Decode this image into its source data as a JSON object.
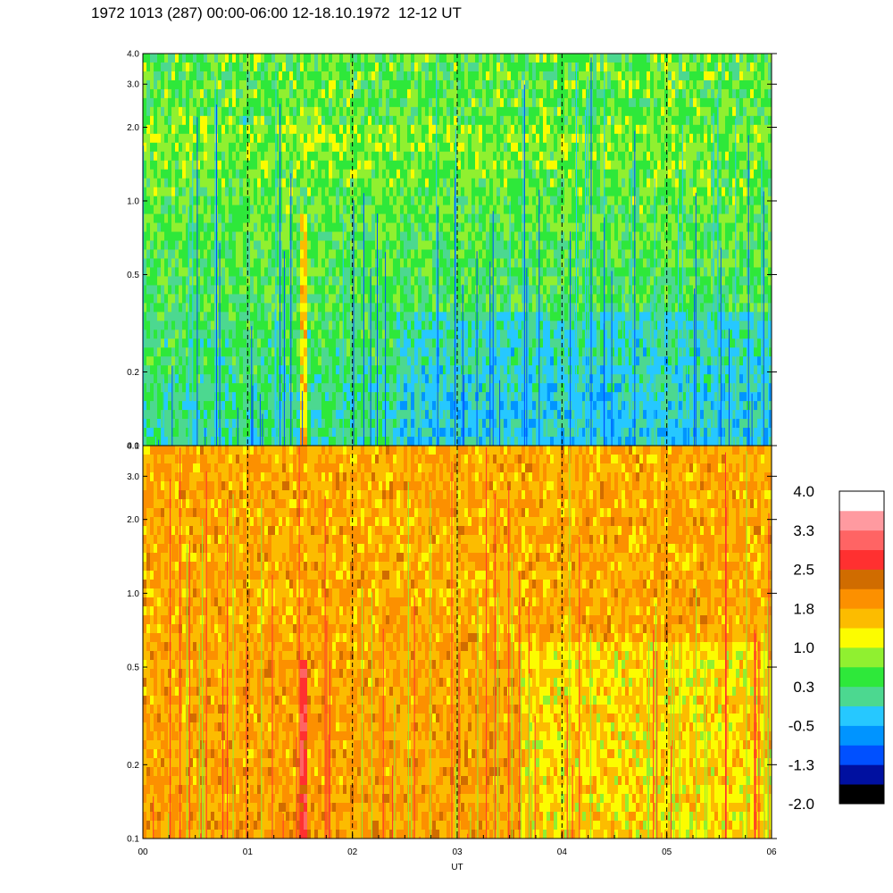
{
  "chart_data": {
    "type": "heatmap",
    "title": "1972 1013 (287) 00:00-06:00 12-18.10.1972  12-12 UT",
    "xlabel": "UT",
    "x_ticks": [
      "00",
      "01",
      "02",
      "03",
      "04",
      "05",
      "06"
    ],
    "xlim": [
      0,
      6
    ],
    "panels": [
      {
        "ylim": [
          0.1,
          4.0
        ],
        "y_scale": "log",
        "y_ticks": [
          "0.1",
          "0.2",
          "0.5",
          "1.0",
          "2.0",
          "3.0",
          "4.0"
        ],
        "dominant_levels": "-0.5 to 1.0",
        "bright_streak_x": [
          1.48,
          1.56
        ]
      },
      {
        "ylim": [
          0.1,
          4.0
        ],
        "y_scale": "log",
        "y_ticks": [
          "0.1",
          "0.2",
          "0.5",
          "1.0",
          "2.0",
          "3.0",
          "4.0"
        ],
        "dominant_levels": "0.3 to 2.5",
        "bright_streak_x": [
          1.48,
          1.56
        ]
      }
    ],
    "dashed_vlines_x": [
      1,
      2,
      3,
      4,
      5
    ],
    "colorbar": {
      "labels": [
        "4.0",
        "3.3",
        "2.5",
        "1.8",
        "1.0",
        "0.3",
        "-0.5",
        "-1.3",
        "-2.0"
      ],
      "colors": [
        "#000000",
        "#0010a0",
        "#0050ff",
        "#0094ff",
        "#26c8ff",
        "#4cd890",
        "#2ee83a",
        "#90f030",
        "#fcfc00",
        "#fcbc00",
        "#fc9000",
        "#d06c00",
        "#ff3030",
        "#ff6464",
        "#ff9aa0",
        "#ffffff"
      ]
    },
    "grid": false,
    "legend": "colorbar right"
  }
}
